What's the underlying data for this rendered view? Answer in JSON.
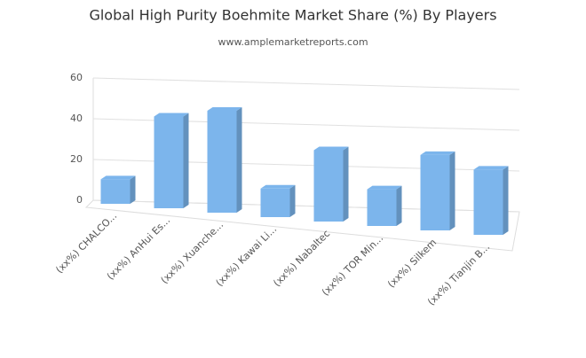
{
  "chart_data": {
    "type": "bar3d",
    "title": "Global High Purity Boehmite Market Share (%) By Players",
    "subtitle": "www.amplemarketreports.com",
    "categories": [
      "(xx%) CHALCO...",
      "(xx%) AnHui Es...",
      "(xx%) Xuanche...",
      "(xx%) Kawai Li...",
      "(xx%) Nabaltec",
      "(xx%) TOR Min...",
      "(xx%) Silkem",
      "(xx%) Tianjin B..."
    ],
    "values": [
      12,
      45,
      50,
      14,
      35,
      18,
      37,
      32
    ],
    "color": "#7cb5ec",
    "ylim": [
      0,
      60
    ],
    "yticks": [
      0,
      20,
      40,
      60
    ],
    "grid": true
  }
}
